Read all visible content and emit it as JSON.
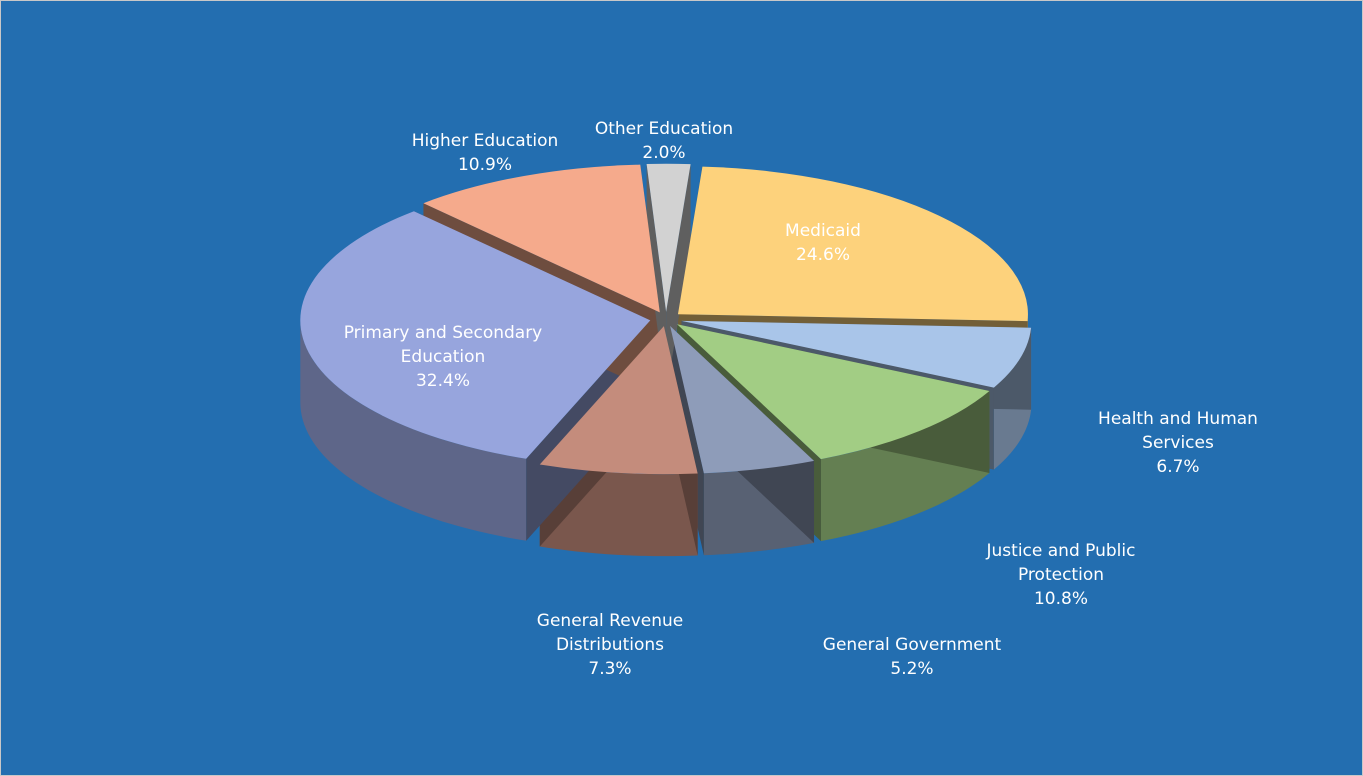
{
  "chart_data": {
    "type": "pie",
    "categories": [
      "Medicaid",
      "Health and Human Services",
      "Justice and Public Protection",
      "General Government",
      "General Revenue Distributions",
      "Primary and Secondary Education",
      "Higher Education",
      "Other Education"
    ],
    "values": [
      24.6,
      6.7,
      10.8,
      5.2,
      7.3,
      32.4,
      10.9,
      2.0
    ],
    "value_labels": [
      "24.6%",
      "6.7%",
      "10.8%",
      "5.2%",
      "7.3%",
      "32.4%",
      "10.9%",
      "2.0%"
    ],
    "colors": [
      "#fdd27c",
      "#a9c5e9",
      "#a2cd84",
      "#8e9cb9",
      "#c48c7c",
      "#97a5dd",
      "#f5aa8c",
      "#d2d2d2"
    ]
  }
}
